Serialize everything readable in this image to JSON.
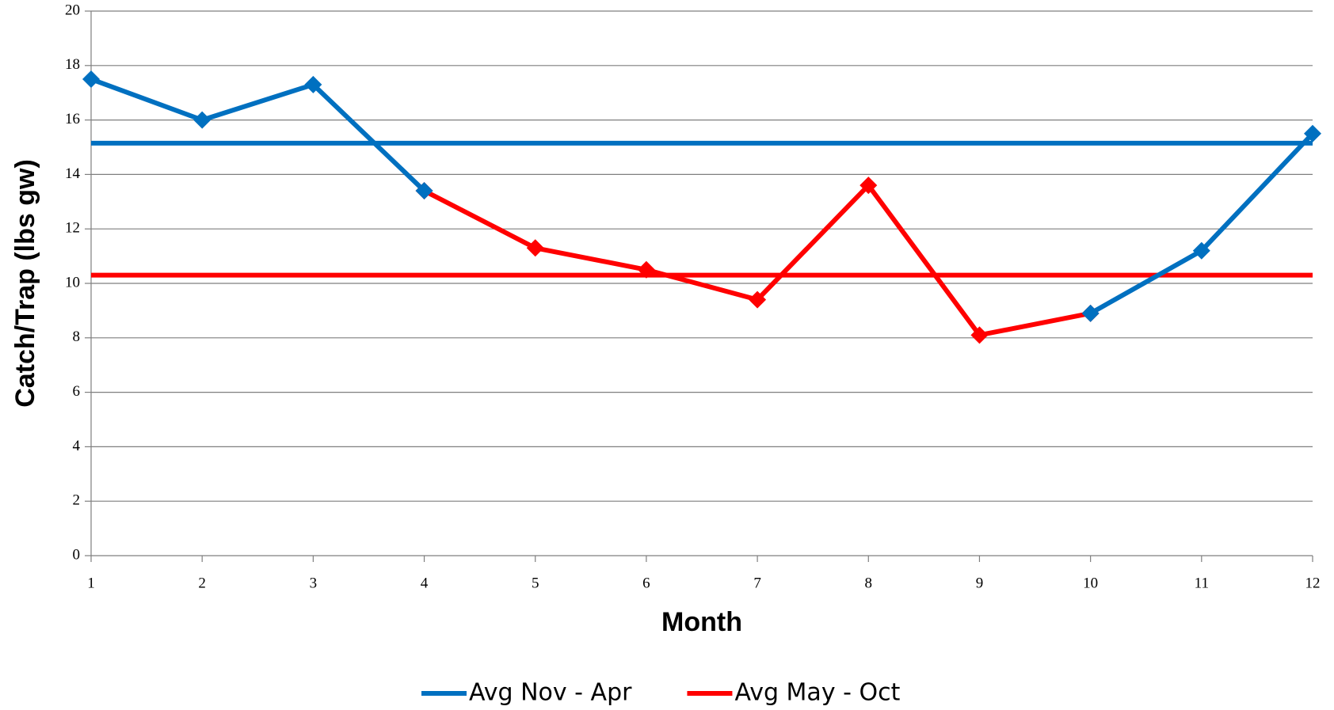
{
  "chart_data": {
    "type": "line",
    "x_label": "Month",
    "y_label": "Catch/Trap (lbs gw)",
    "x": [
      1,
      2,
      3,
      4,
      5,
      6,
      7,
      8,
      9,
      10,
      11,
      12
    ],
    "xlim": [
      1,
      12
    ],
    "xticks": [
      1,
      2,
      3,
      4,
      5,
      6,
      7,
      8,
      9,
      10,
      11,
      12
    ],
    "ylim": [
      0,
      20
    ],
    "yticks": [
      0,
      2,
      4,
      6,
      8,
      10,
      12,
      14,
      16,
      18,
      20
    ],
    "grid": true,
    "legend": "bottom",
    "series": [
      {
        "name": "Avg Nov - Apr",
        "color": "#0070c0",
        "average": 15.15,
        "values": [
          17.5,
          16.0,
          17.3,
          13.4,
          null,
          null,
          null,
          null,
          null,
          8.9,
          11.2,
          15.5
        ]
      },
      {
        "name": "Avg May - Oct",
        "color": "#ff0000",
        "average": 10.3,
        "values": [
          null,
          null,
          null,
          13.4,
          11.3,
          10.5,
          9.4,
          13.6,
          8.1,
          8.9,
          null,
          null
        ]
      }
    ]
  }
}
